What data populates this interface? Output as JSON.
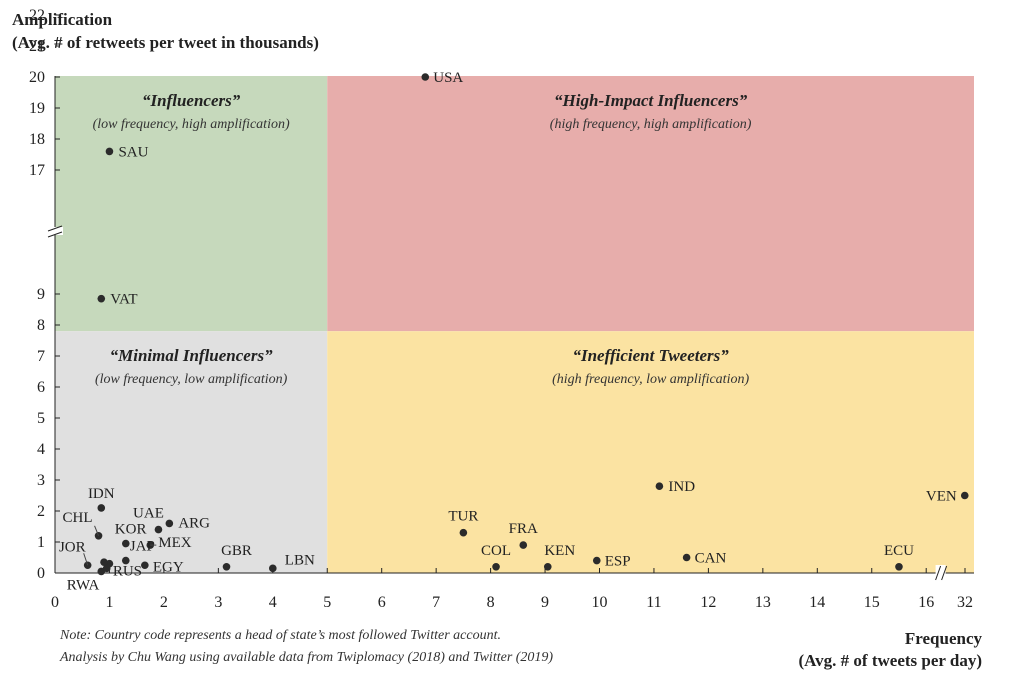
{
  "chart_data": {
    "type": "scatter",
    "title": "",
    "ylabel": [
      "Amplification",
      "(Avg. # of retweets per tweet in thousands)"
    ],
    "xlabel": [
      "Frequency",
      "(Avg. # of tweets per day)"
    ],
    "x_ticks": [
      "0",
      "1",
      "2",
      "3",
      "4",
      "5",
      "6",
      "7",
      "8",
      "9",
      "10",
      "11",
      "12",
      "13",
      "14",
      "15",
      "16",
      "32"
    ],
    "y_ticks": [
      "0",
      "1",
      "2",
      "3",
      "4",
      "5",
      "6",
      "7",
      "8",
      "9",
      "17",
      "18",
      "19",
      "20",
      "21",
      "22"
    ],
    "axis_breaks": {
      "x": "between 16 and 32",
      "y": "between 9 and 17"
    },
    "quadrants": [
      {
        "title": "“Influencers”",
        "subtitle": "(low frequency, high amplification)",
        "color": "#c6d9bc"
      },
      {
        "title": "“High-Impact Influencers”",
        "subtitle": "(high frequency, high amplification)",
        "color": "#e7adab"
      },
      {
        "title": "“Minimal Influencers”",
        "subtitle": "(low frequency, low amplification)",
        "color": "#e0e0e0"
      },
      {
        "title": "“Inefficient Tweeters”",
        "subtitle": "(high frequency, low amplification)",
        "color": "#fbe3a2"
      }
    ],
    "points": [
      {
        "label": "USA",
        "x": 6.8,
        "y": 20
      },
      {
        "label": "SAU",
        "x": 1.0,
        "y": 17.6
      },
      {
        "label": "VAT",
        "x": 0.85,
        "y": 8.85
      },
      {
        "label": "IND",
        "x": 11.1,
        "y": 2.8
      },
      {
        "label": "VEN",
        "x": 31.9,
        "y": 2.5
      },
      {
        "label": "TUR",
        "x": 7.5,
        "y": 1.3
      },
      {
        "label": "FRA",
        "x": 8.6,
        "y": 0.9
      },
      {
        "label": "COL",
        "x": 8.1,
        "y": 0.2
      },
      {
        "label": "KEN",
        "x": 9.05,
        "y": 0.2
      },
      {
        "label": "ESP",
        "x": 9.95,
        "y": 0.4
      },
      {
        "label": "CAN",
        "x": 11.6,
        "y": 0.5
      },
      {
        "label": "ECU",
        "x": 15.5,
        "y": 0.2
      },
      {
        "label": "LBN",
        "x": 4.0,
        "y": 0.15
      },
      {
        "label": "GBR",
        "x": 3.15,
        "y": 0.2
      },
      {
        "label": "IDN",
        "x": 0.85,
        "y": 2.1
      },
      {
        "label": "UAE",
        "x": 1.9,
        "y": 1.4
      },
      {
        "label": "ARG",
        "x": 2.1,
        "y": 1.6
      },
      {
        "label": "CHL",
        "x": 0.8,
        "y": 1.2
      },
      {
        "label": "KOR",
        "x": 1.3,
        "y": 0.95
      },
      {
        "label": "MEX",
        "x": 1.75,
        "y": 0.9
      },
      {
        "label": "JAP",
        "x": 1.3,
        "y": 0.4
      },
      {
        "label": "JOR",
        "x": 0.6,
        "y": 0.25
      },
      {
        "label": "EGY",
        "x": 1.65,
        "y": 0.25
      },
      {
        "label": "RWA",
        "x": 0.85,
        "y": 0.05
      },
      {
        "label": "RUS",
        "x": 1.0,
        "y": 0.3
      },
      {
        "label": "",
        "x": 0.95,
        "y": 0.15
      },
      {
        "label": "",
        "x": 0.9,
        "y": 0.35
      }
    ],
    "point_color": "#2b2b2b",
    "grid": false
  },
  "note": [
    "Note: Country code represents a head of state’s most followed Twitter account.",
    "Analysis by Chu Wang using available data from Twiplomacy (2018) and Twitter (2019)"
  ]
}
